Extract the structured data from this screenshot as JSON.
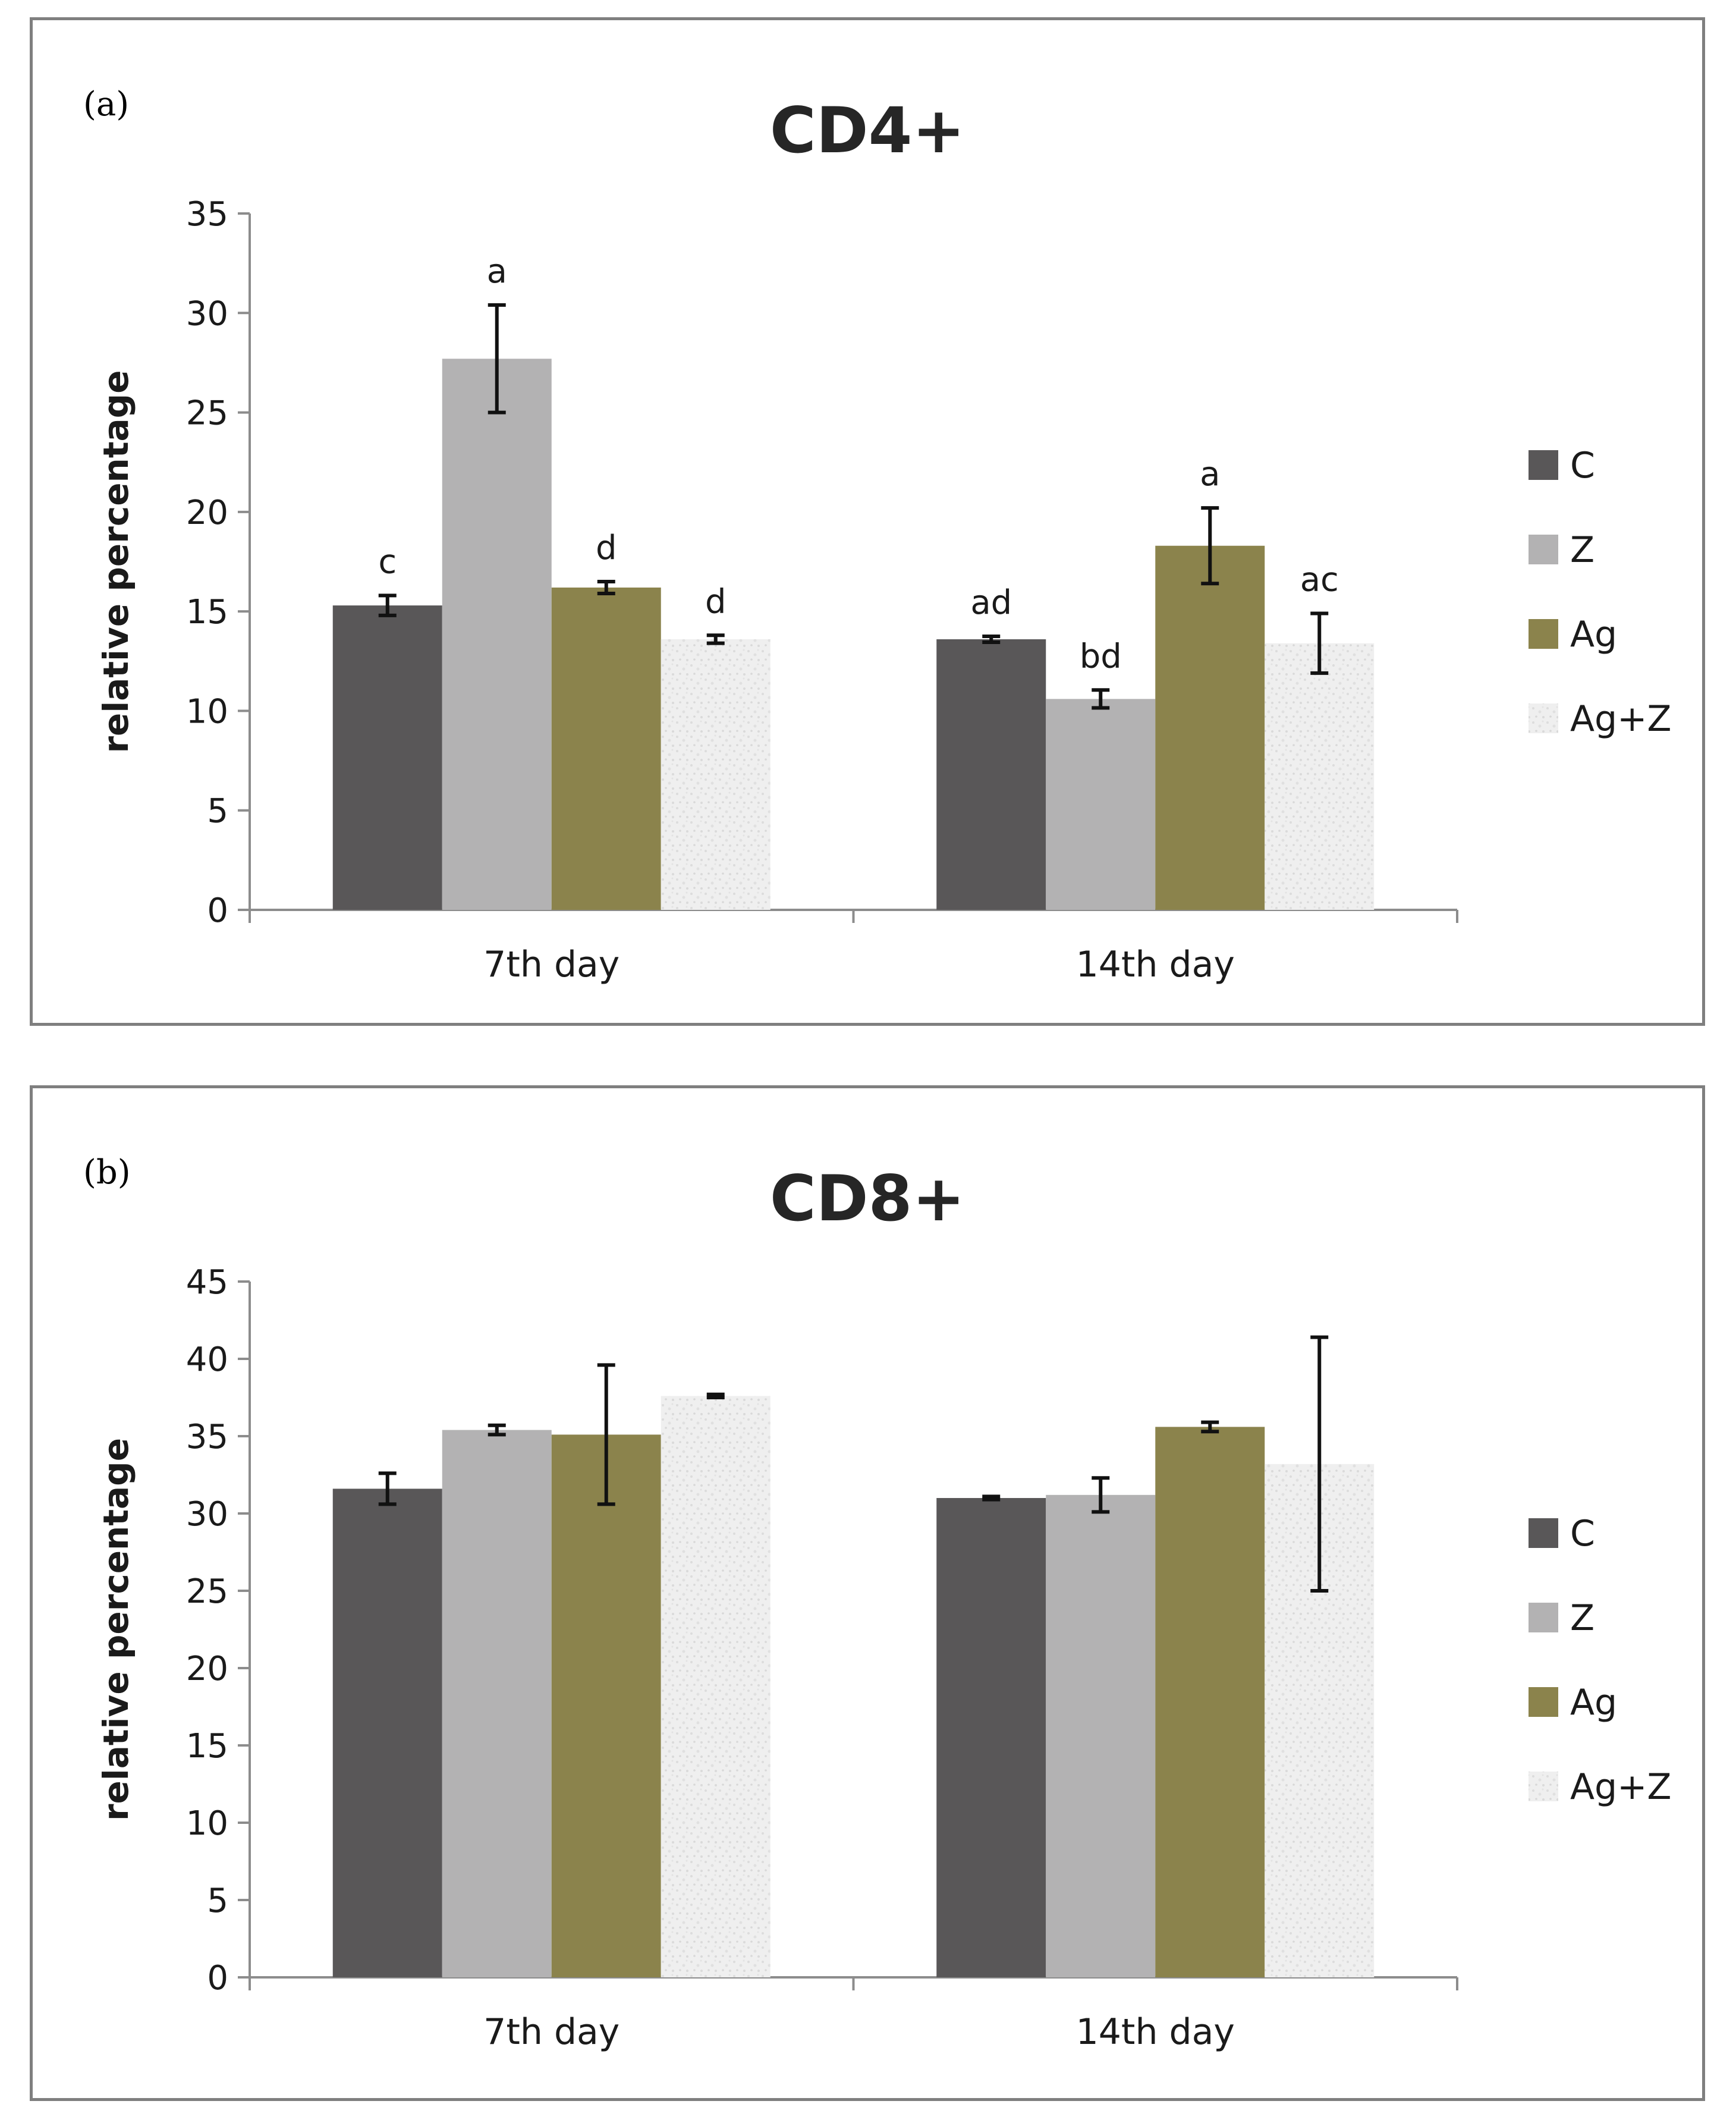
{
  "chart_data": [
    {
      "type": "bar",
      "panel_label": "(a)",
      "title": "CD4+",
      "xlabel": "",
      "ylabel": "relative percentage",
      "ylim": [
        0,
        35
      ],
      "yticks": [
        "0",
        "5",
        "10",
        "15",
        "20",
        "25",
        "30",
        "35"
      ],
      "categories": [
        "7th day",
        "14th day"
      ],
      "legend_position": "right",
      "series": [
        {
          "name": "C",
          "color": "#595758",
          "values": [
            15.3,
            13.6
          ],
          "errors": [
            0.5,
            0.15
          ],
          "labels": [
            "c",
            "ad"
          ]
        },
        {
          "name": "Z",
          "color": "#b3b2b3",
          "values": [
            27.7,
            10.6
          ],
          "errors": [
            2.7,
            0.45
          ],
          "labels": [
            "a",
            "bd"
          ]
        },
        {
          "name": "Ag",
          "color": "#8b834c",
          "values": [
            16.2,
            18.3
          ],
          "errors": [
            0.3,
            1.9
          ],
          "labels": [
            "d",
            "a"
          ]
        },
        {
          "name": "Ag+Z",
          "color": "#eeeeee",
          "values": [
            13.6,
            13.4
          ],
          "errors": [
            0.2,
            1.5
          ],
          "labels": [
            "d",
            "ac"
          ]
        }
      ]
    },
    {
      "type": "bar",
      "panel_label": "(b)",
      "title": "CD8+",
      "xlabel": "",
      "ylabel": "relative percentage",
      "ylim": [
        0,
        45
      ],
      "yticks": [
        "0",
        "5",
        "10",
        "15",
        "20",
        "25",
        "30",
        "35",
        "40",
        "45"
      ],
      "categories": [
        "7th day",
        "14th day"
      ],
      "legend_position": "right",
      "series": [
        {
          "name": "C",
          "color": "#595758",
          "values": [
            31.6,
            31.0
          ],
          "errors": [
            1.0,
            0.1
          ],
          "labels": [
            "",
            ""
          ]
        },
        {
          "name": "Z",
          "color": "#b3b2b3",
          "values": [
            35.4,
            31.2
          ],
          "errors": [
            0.3,
            1.1
          ],
          "labels": [
            "",
            ""
          ]
        },
        {
          "name": "Ag",
          "color": "#8b834c",
          "values": [
            35.1,
            35.6
          ],
          "errors": [
            4.5,
            0.3
          ],
          "labels": [
            "",
            ""
          ]
        },
        {
          "name": "Ag+Z",
          "color": "#eeeeee",
          "values": [
            37.6,
            33.2
          ],
          "errors": [
            0.1,
            8.2
          ],
          "labels": [
            "",
            ""
          ]
        }
      ]
    }
  ]
}
